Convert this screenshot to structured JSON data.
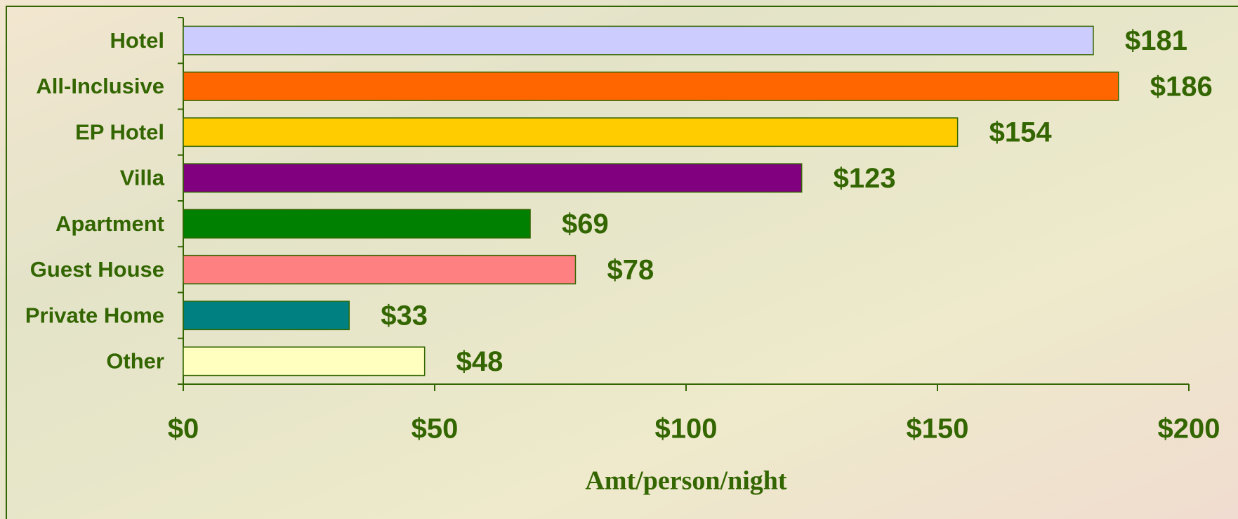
{
  "chart_data": {
    "type": "barh",
    "x_label": "Amt/person/night",
    "categories": [
      "Hotel",
      "All-Inclusive",
      "EP Hotel",
      "Villa",
      "Apartment",
      "Guest House",
      "Private Home",
      "Other"
    ],
    "values": [
      181,
      186,
      154,
      123,
      69,
      78,
      33,
      48
    ],
    "value_labels": [
      "$181",
      "$186",
      "$154",
      "$123",
      "$69",
      "$78",
      "$33",
      "$48"
    ],
    "colors": [
      "#ccccff",
      "#ff6600",
      "#ffcc00",
      "#800080",
      "#008000",
      "#ff8080",
      "#008080",
      "#ffffc0"
    ],
    "xlim": [
      0,
      200
    ],
    "xticks": [
      {
        "value": 0,
        "label": "$0"
      },
      {
        "value": 50,
        "label": "$50"
      },
      {
        "value": 100,
        "label": "$100"
      },
      {
        "value": 150,
        "label": "$150"
      },
      {
        "value": 200,
        "label": "$200"
      }
    ]
  }
}
